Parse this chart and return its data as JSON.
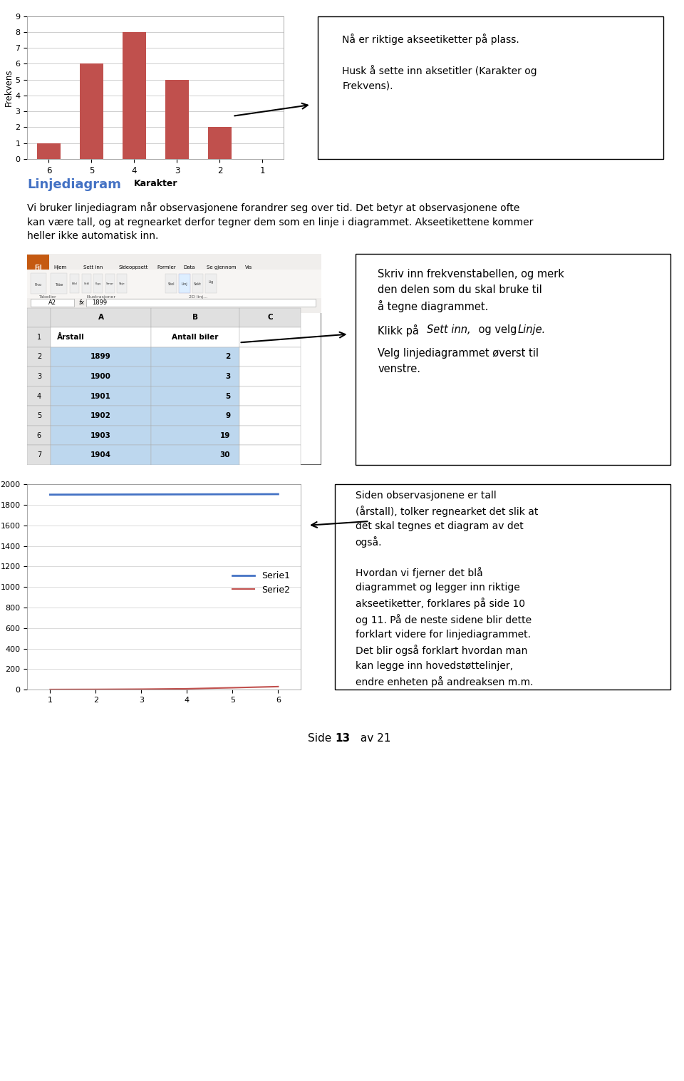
{
  "page_bg": "#ffffff",
  "bar_chart": {
    "categories": [
      "6",
      "5",
      "4",
      "3",
      "2",
      "1"
    ],
    "values": [
      1,
      6,
      8,
      5,
      2,
      0
    ],
    "bar_color": "#c0504d",
    "ylabel": "Frekvens",
    "xlabel": "Karakter",
    "ylim": [
      0,
      9
    ],
    "yticks": [
      0,
      1,
      2,
      3,
      4,
      5,
      6,
      7,
      8,
      9
    ],
    "grid_color": "#aaaaaa"
  },
  "callout_box1_text": "Nå er riktige akseetiketter på plass.\n\nHusk å sette inn aksetitler (Karakter og\nFrekvens).",
  "section_title": "Linjediagram",
  "section_title_color": "#4472c4",
  "section_text1": "Vi bruker linjediagram når observasjonene forandrer seg over tid. Det betyr at observasjonene ofte",
  "section_text2": "kan være tall, og at regnearket derfor tegner dem som en linje i diagrammet. Akseetikettene kommer",
  "section_text3": "heller ikke automatisk inn.",
  "callout2_line1": "Skriv inn frekvenstabellen, og merk",
  "callout2_line2": "den delen som du skal bruke til",
  "callout2_line3": "å tegne diagrammet.",
  "callout2_line4_pre": "Klikk på ",
  "callout2_line4_italic1": "Sett inn,",
  "callout2_line4_mid": " og velg ",
  "callout2_line4_italic2": "Linje.",
  "callout2_line5": "Velg linjediagrammet øverst til",
  "callout2_line6": "venstre.",
  "spreadsheet": {
    "rows": [
      [
        "1899",
        "2"
      ],
      [
        "1900",
        "3"
      ],
      [
        "1901",
        "5"
      ],
      [
        "1902",
        "9"
      ],
      [
        "1903",
        "19"
      ],
      [
        "1904",
        "30"
      ]
    ],
    "row_numbers": [
      "2",
      "3",
      "4",
      "5",
      "6",
      "7"
    ],
    "selected_bg": "#bdd7ee",
    "row_num_bg": "#f2f2f2",
    "header_bg": "#e0e0e0"
  },
  "line_chart": {
    "x": [
      1,
      2,
      3,
      4,
      5,
      6
    ],
    "serie1": [
      1899,
      1900,
      1901,
      1902,
      1903,
      1904
    ],
    "serie2": [
      2,
      3,
      5,
      9,
      19,
      30
    ],
    "serie1_color": "#4472c4",
    "serie2_color": "#c0504d",
    "ylim": [
      0,
      2000
    ],
    "yticks": [
      0,
      200,
      400,
      600,
      800,
      1000,
      1200,
      1400,
      1600,
      1800,
      2000
    ],
    "legend1": "Serie1",
    "legend2": "Serie2"
  },
  "callout3_text": "Siden observasjonene er tall\n(årstall), tolker regnearket det slik at\ndet skal tegnes et diagram av det\nogså.\n\nHvordan vi fjerner det blå\ndiagrammet og legger inn riktige\nakseetiketter, forklares på side 10\nog 11. På de neste sidene blir dette\nforklart videre for linjediagrammet.\nDet blir også forklart hvordan man\nkan legge inn hovedstøttelinjer,\nendre enheten på andreaksen m.m.",
  "footer_text": "Side ",
  "footer_bold": "13",
  "footer_end": " av 21"
}
